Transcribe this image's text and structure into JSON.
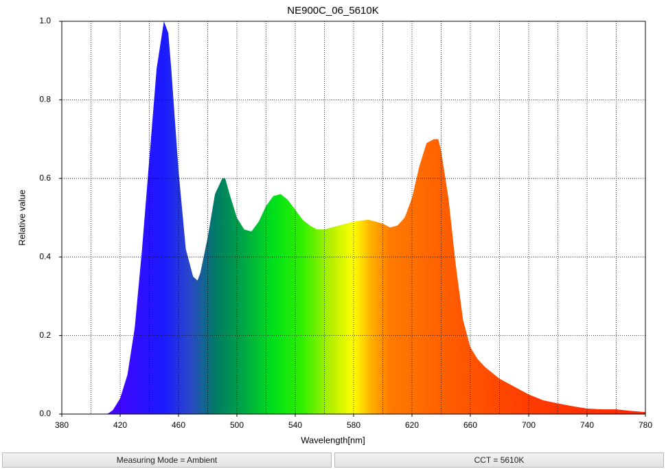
{
  "chart_data": {
    "type": "area",
    "title": "NE900C_06_5610K",
    "xlabel": "Wavelength[nm]",
    "ylabel": "Relative value",
    "x": [
      380,
      410,
      412,
      415,
      420,
      425,
      430,
      435,
      440,
      445,
      450,
      453,
      455,
      460,
      465,
      470,
      473,
      475,
      480,
      485,
      490,
      492,
      495,
      500,
      505,
      510,
      515,
      520,
      525,
      530,
      535,
      540,
      545,
      550,
      555,
      560,
      570,
      580,
      590,
      600,
      605,
      610,
      615,
      620,
      625,
      630,
      635,
      638,
      640,
      645,
      650,
      655,
      660,
      665,
      670,
      680,
      690,
      700,
      710,
      720,
      730,
      740,
      750,
      760,
      770,
      780
    ],
    "values": [
      0,
      0,
      0.002,
      0.01,
      0.04,
      0.1,
      0.22,
      0.42,
      0.65,
      0.88,
      1.0,
      0.97,
      0.88,
      0.62,
      0.42,
      0.35,
      0.34,
      0.36,
      0.45,
      0.56,
      0.6,
      0.6,
      0.56,
      0.5,
      0.47,
      0.465,
      0.49,
      0.53,
      0.555,
      0.56,
      0.545,
      0.52,
      0.495,
      0.48,
      0.47,
      0.47,
      0.48,
      0.49,
      0.495,
      0.485,
      0.475,
      0.48,
      0.5,
      0.55,
      0.63,
      0.69,
      0.7,
      0.7,
      0.67,
      0.55,
      0.38,
      0.24,
      0.17,
      0.14,
      0.12,
      0.09,
      0.07,
      0.05,
      0.035,
      0.027,
      0.02,
      0.014,
      0.012,
      0.012,
      0.008,
      0.005
    ],
    "xlim": [
      380,
      780
    ],
    "xticks": [
      380,
      420,
      460,
      500,
      540,
      580,
      620,
      660,
      700,
      740,
      780
    ],
    "xgrid": [
      400,
      420,
      440,
      460,
      480,
      500,
      520,
      540,
      560,
      580,
      600,
      620,
      640,
      660,
      680,
      700,
      720,
      740,
      760
    ],
    "ylim": [
      0,
      1
    ],
    "yticks": [
      {
        "value": 0,
        "label": "0.0"
      },
      0.2,
      0.4,
      0.6,
      0.8,
      {
        "value": 1,
        "label": "1.0"
      }
    ],
    "grid": true,
    "colors": [
      {
        "x": 410,
        "color": "#4a00ff"
      },
      {
        "x": 450,
        "color": "#1a1aff"
      },
      {
        "x": 468,
        "color": "#2a48c8"
      },
      {
        "x": 485,
        "color": "#007a66"
      },
      {
        "x": 505,
        "color": "#00a844"
      },
      {
        "x": 525,
        "color": "#00e01a"
      },
      {
        "x": 545,
        "color": "#30f000"
      },
      {
        "x": 565,
        "color": "#b8f000"
      },
      {
        "x": 580,
        "color": "#ffff00"
      },
      {
        "x": 592,
        "color": "#ffb000"
      },
      {
        "x": 605,
        "color": "#ff7a00"
      },
      {
        "x": 650,
        "color": "#ff5a00"
      },
      {
        "x": 700,
        "color": "#ff3c00"
      },
      {
        "x": 780,
        "color": "#ff2400"
      }
    ]
  },
  "status_bar": [
    "Measuring Mode = Ambient",
    "CCT = 5610K"
  ]
}
